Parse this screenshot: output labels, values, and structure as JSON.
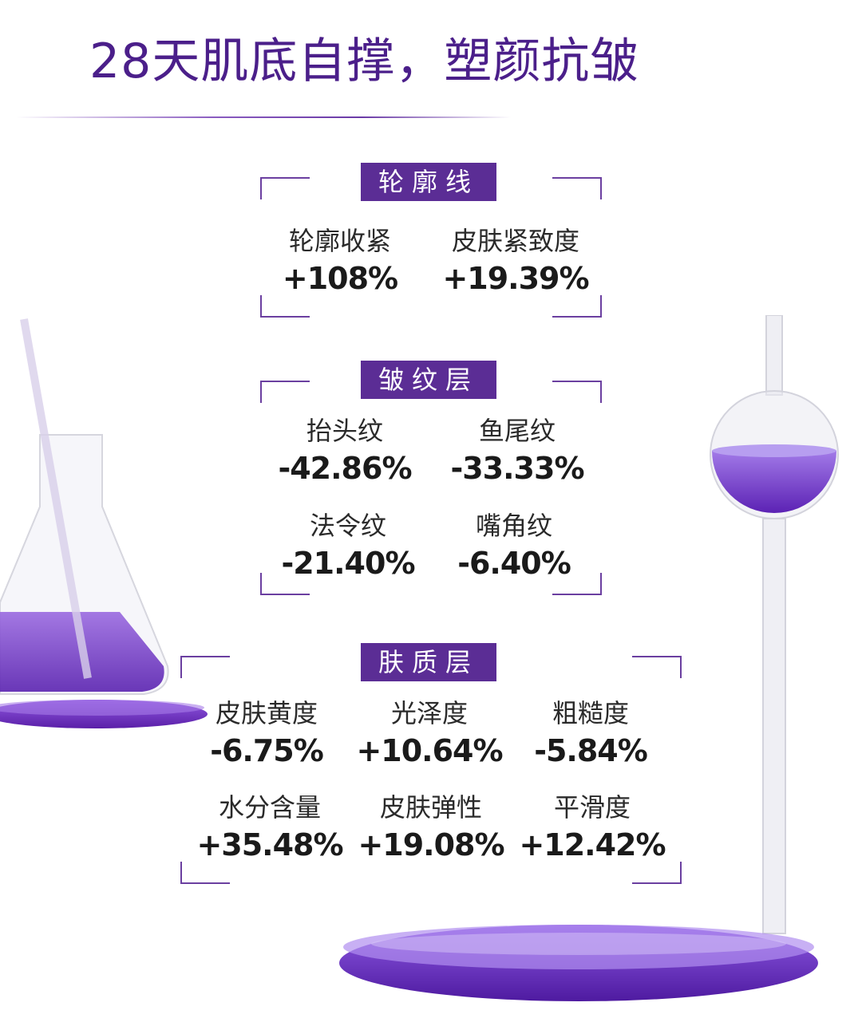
{
  "title": "28天肌底自撑，塑颜抗皱",
  "sections": [
    {
      "label": "轮廓线",
      "metrics": [
        {
          "name": "轮廓收紧",
          "value": "+108%"
        },
        {
          "name": "皮肤紧致度",
          "value": "+19.39%"
        }
      ]
    },
    {
      "label": "皱纹层",
      "metrics": [
        {
          "name": "抬头纹",
          "value": "-42.86%"
        },
        {
          "name": "鱼尾纹",
          "value": "-33.33%"
        },
        {
          "name": "法令纹",
          "value": "-21.40%"
        },
        {
          "name": "嘴角纹",
          "value": "-6.40%"
        }
      ]
    },
    {
      "label": "肤质层",
      "metrics": [
        {
          "name": "皮肤黄度",
          "value": "-6.75%"
        },
        {
          "name": "光泽度",
          "value": "+10.64%"
        },
        {
          "name": "粗糙度",
          "value": "-5.84%"
        },
        {
          "name": "水分含量",
          "value": "+35.48%"
        },
        {
          "name": "皮肤弹性",
          "value": "+19.08%"
        },
        {
          "name": "平滑度",
          "value": "+12.42%"
        }
      ]
    }
  ],
  "colors": {
    "accent": "#5b2d95",
    "title": "#4b1f8a",
    "liquid": "#7a3fd0"
  },
  "icons": [
    "flask-icon",
    "round-flask-icon",
    "purple-disc-icon"
  ]
}
